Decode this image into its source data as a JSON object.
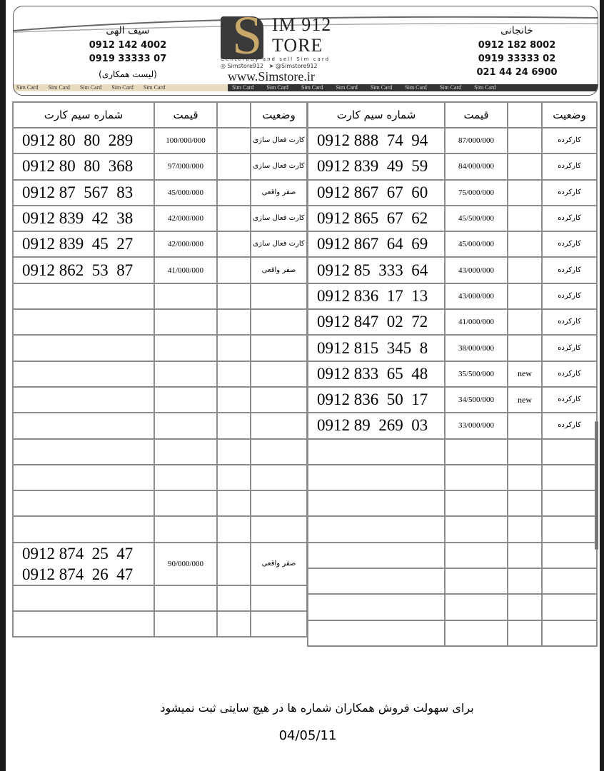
{
  "header": {
    "left_contact": {
      "name": "سیف الهی",
      "phones": [
        "0912 142 4002",
        "0919 33333 07"
      ]
    },
    "right_contact": {
      "name": "خانجانی",
      "phones": [
        "0912 182 8002",
        "0919 33333 02",
        "021 44 24 6900"
      ]
    },
    "coop_label": "(لیست همکاری)",
    "logo": {
      "line1": "IM 912",
      "line2": "TORE",
      "tagline": "Centerbuy and sell Sim card",
      "instagram": "Simstore912",
      "telegram": "@Simstore912",
      "url": "www.Simstore.ir"
    },
    "strip_text": "Sim Card",
    "accent_color": "#c9a96a"
  },
  "columns": {
    "number": "شماره سیم کارت",
    "price": "قیمت",
    "extra": "",
    "status": "وضعیت"
  },
  "left_table": {
    "rows": [
      {
        "number": "0912 80  80  289",
        "price": "100/000/000",
        "extra": "",
        "status": "کارت فعال سازی"
      },
      {
        "number": "0912 80  80  368",
        "price": "97/000/000",
        "extra": "",
        "status": "کارت فعال سازی"
      },
      {
        "number": "0912 87  567  83",
        "price": "45/000/000",
        "extra": "",
        "status": "صفر واقعی"
      },
      {
        "number": "0912 839  42  38",
        "price": "42/000/000",
        "extra": "",
        "status": "کارت فعال سازی"
      },
      {
        "number": "0912 839  45  27",
        "price": "42/000/000",
        "extra": "",
        "status": "کارت فعال سازی"
      },
      {
        "number": "0912 862  53  87",
        "price": "41/000/000",
        "extra": "",
        "status": "صفر واقعی"
      }
    ],
    "empty_rows_before_pair": 10,
    "pair_row": {
      "numbers": [
        "0912 874  25  47",
        "0912 874  26  47"
      ],
      "price": "90/000/000",
      "status": "صفر واقعی"
    },
    "empty_rows_after_pair": 2
  },
  "right_table": {
    "rows": [
      {
        "number": "0912 888  74  94",
        "price": "87/000/000",
        "extra": "",
        "status": "کارکرده"
      },
      {
        "number": "0912 839  49  59",
        "price": "84/000/000",
        "extra": "",
        "status": "کارکرده"
      },
      {
        "number": "0912 867  67  60",
        "price": "75/000/000",
        "extra": "",
        "status": "کارکرده"
      },
      {
        "number": "0912 865  67  62",
        "price": "45/500/000",
        "extra": "",
        "status": "کارکرده"
      },
      {
        "number": "0912 867  64  69",
        "price": "45/000/000",
        "extra": "",
        "status": "کارکرده"
      },
      {
        "number": "0912 85  333  64",
        "price": "43/000/000",
        "extra": "",
        "status": "کارکرده"
      },
      {
        "number": "0912 836  17  13",
        "price": "43/000/000",
        "extra": "",
        "status": "کارکرده"
      },
      {
        "number": "0912 847  02  72",
        "price": "41/000/000",
        "extra": "",
        "status": "کارکرده"
      },
      {
        "number": "0912 815  345  8",
        "price": "38/000/000",
        "extra": "",
        "status": "کارکرده"
      },
      {
        "number": "0912 833  65  48",
        "price": "35/500/000",
        "extra": "new",
        "status": "کارکرده"
      },
      {
        "number": "0912 836  50  17",
        "price": "34/500/000",
        "extra": "new",
        "status": "کارکرده"
      },
      {
        "number": "0912 89  269  03",
        "price": "33/000/000",
        "extra": "",
        "status": "کارکرده"
      }
    ],
    "empty_rows": 8
  },
  "footer": {
    "note": "برای سهولت فروش همکاران شماره ها در  هیچ سایتی ثبت نمیشود",
    "date": "04/05/11"
  }
}
